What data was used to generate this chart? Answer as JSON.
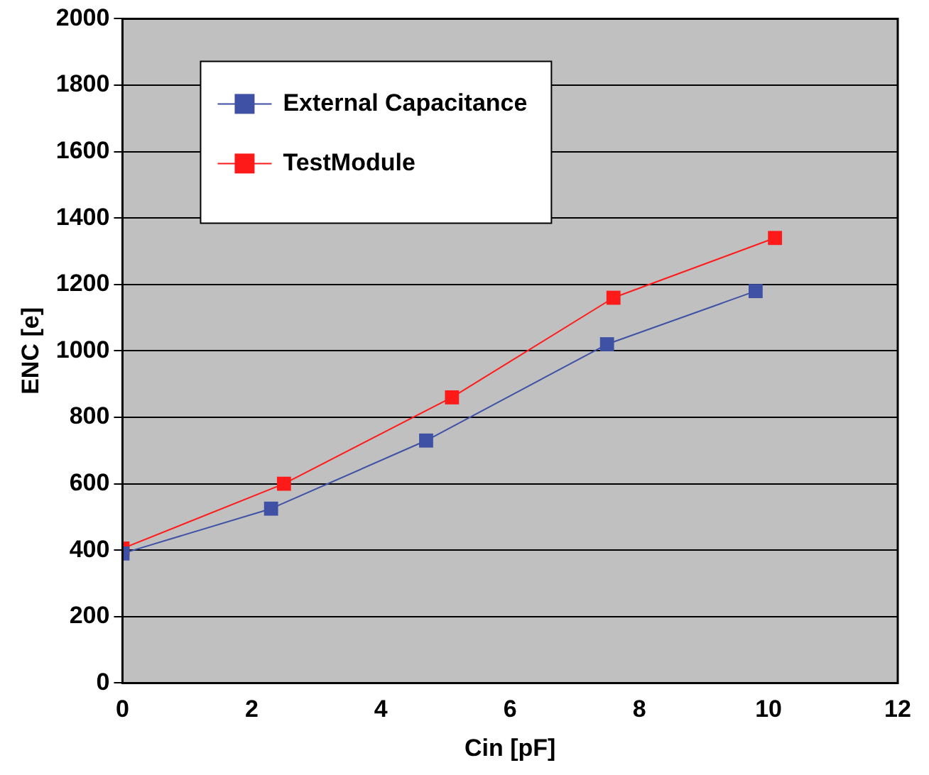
{
  "chart_data": {
    "type": "line",
    "xlabel": "Cin [pF]",
    "ylabel": "ENC [e]",
    "xlim": [
      0,
      12
    ],
    "xticks": [
      0,
      2,
      4,
      6,
      8,
      10,
      12
    ],
    "ylim": [
      0,
      2000
    ],
    "yticks": [
      0,
      200,
      400,
      600,
      800,
      1000,
      1200,
      1400,
      1600,
      1800,
      2000
    ],
    "grid": "y",
    "legend": "top left",
    "marker": "square",
    "line_style": "solid",
    "series": [
      {
        "name": "External Capacitance",
        "color": "#3f51a5",
        "x": [
          0,
          2.3,
          4.7,
          7.5,
          9.8
        ],
        "values": [
          390,
          525,
          730,
          1020,
          1180
        ]
      },
      {
        "name": "TestModule",
        "color": "#ff1a1a",
        "x": [
          0,
          2.5,
          5.1,
          7.6,
          10.1
        ],
        "values": [
          405,
          600,
          860,
          1160,
          1340
        ]
      }
    ]
  }
}
